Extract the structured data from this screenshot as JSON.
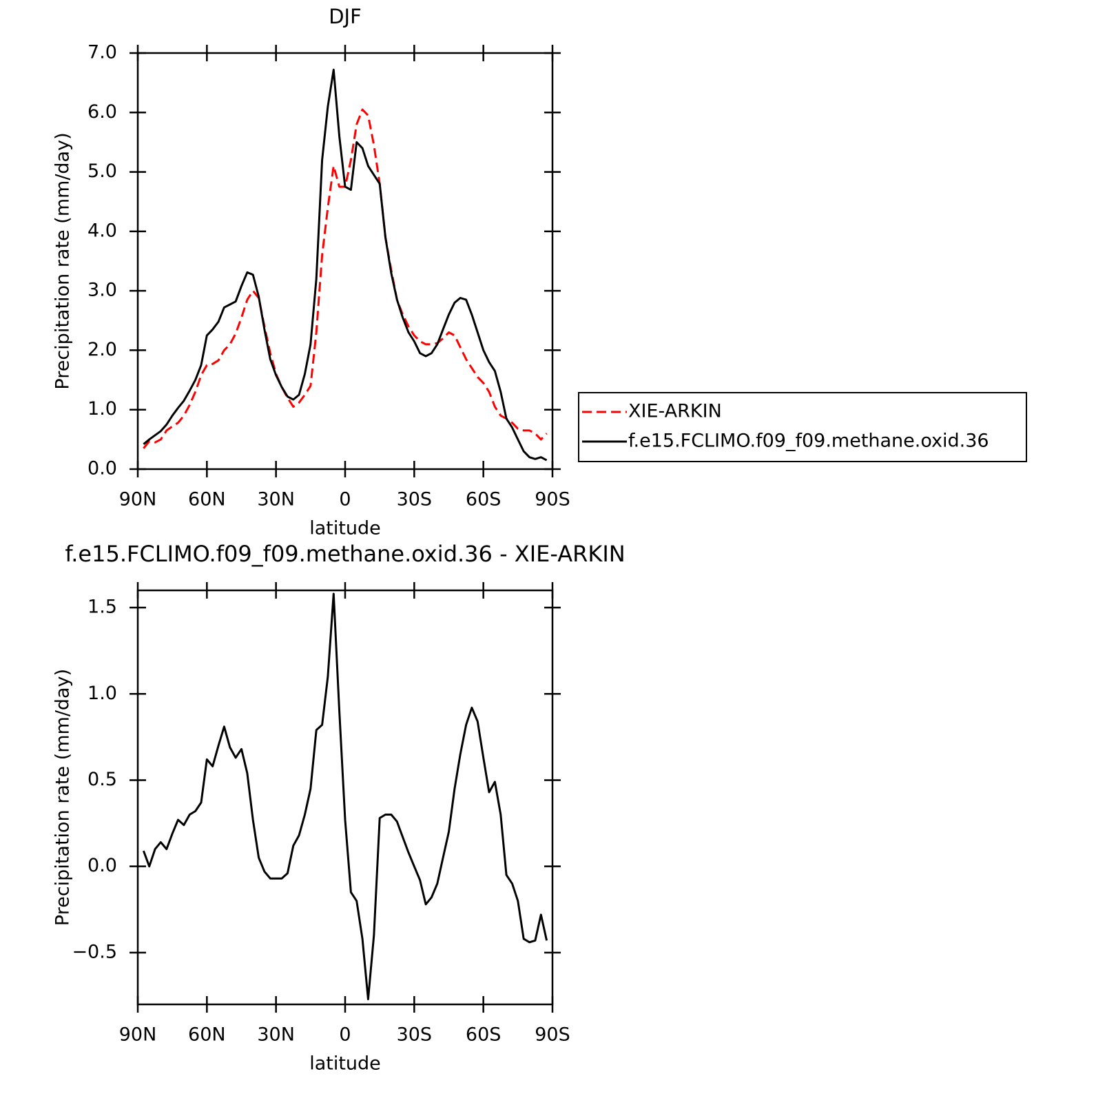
{
  "chart_data": [
    {
      "type": "line",
      "title": "DJF",
      "xlabel": "latitude",
      "ylabel": "Precipitation rate (mm/day)",
      "x": [
        87.5,
        85,
        82.5,
        80,
        77.5,
        75,
        72.5,
        70,
        67.5,
        65,
        62.5,
        60,
        57.5,
        55,
        52.5,
        50,
        47.5,
        45,
        42.5,
        40,
        37.5,
        35,
        32.5,
        30,
        27.5,
        25,
        22.5,
        20,
        17.5,
        15,
        12.5,
        10,
        7.5,
        5,
        2.5,
        0,
        -2.5,
        -5,
        -7.5,
        -10,
        -12.5,
        -15,
        -17.5,
        -20,
        -22.5,
        -25,
        -27.5,
        -30,
        -32.5,
        -35,
        -37.5,
        -40,
        -42.5,
        -45,
        -47.5,
        -50,
        -52.5,
        -55,
        -57.5,
        -60,
        -62.5,
        -65,
        -67.5,
        -70,
        -72.5,
        -75,
        -77.5,
        -80,
        -82.5,
        -85,
        -87.5
      ],
      "series": [
        {
          "name": "XIE-ARKIN",
          "color": "#ff0000",
          "line_style": "dashed",
          "values": [
            0.35,
            0.47,
            0.45,
            0.5,
            0.65,
            0.72,
            0.78,
            0.9,
            1.08,
            1.3,
            1.58,
            1.75,
            1.77,
            1.83,
            2.0,
            2.1,
            2.28,
            2.55,
            2.85,
            3.0,
            2.88,
            2.4,
            1.95,
            1.6,
            1.38,
            1.2,
            1.05,
            1.12,
            1.25,
            1.4,
            2.3,
            3.6,
            4.4,
            5.1,
            4.75,
            4.75,
            5.2,
            5.8,
            6.05,
            5.95,
            5.45,
            4.8,
            3.9,
            3.35,
            2.85,
            2.6,
            2.4,
            2.25,
            2.15,
            2.1,
            2.1,
            2.12,
            2.2,
            2.3,
            2.25,
            2.05,
            1.85,
            1.7,
            1.55,
            1.45,
            1.3,
            1.05,
            0.9,
            0.85,
            0.78,
            0.68,
            0.65,
            0.65,
            0.6,
            0.5,
            0.6
          ]
        },
        {
          "name": "f.e15.FCLIMO.f09_f09.methane.oxid.36",
          "color": "#000000",
          "line_style": "solid",
          "values": [
            0.42,
            0.5,
            0.57,
            0.64,
            0.75,
            0.9,
            1.03,
            1.15,
            1.32,
            1.5,
            1.75,
            2.25,
            2.35,
            2.48,
            2.72,
            2.77,
            2.82,
            3.08,
            3.31,
            3.27,
            2.9,
            2.35,
            1.85,
            1.58,
            1.38,
            1.22,
            1.17,
            1.25,
            1.6,
            2.1,
            3.2,
            5.2,
            6.1,
            6.72,
            5.6,
            4.75,
            4.7,
            5.5,
            5.4,
            5.1,
            4.95,
            4.8,
            3.9,
            3.3,
            2.85,
            2.55,
            2.3,
            2.15,
            1.95,
            1.9,
            1.95,
            2.1,
            2.35,
            2.6,
            2.8,
            2.88,
            2.85,
            2.6,
            2.3,
            2.0,
            1.8,
            1.65,
            1.3,
            0.85,
            0.7,
            0.5,
            0.3,
            0.2,
            0.17,
            0.2,
            0.15
          ]
        }
      ],
      "xlim": [
        90,
        -90
      ],
      "xticks": [
        {
          "value": 90,
          "label": "90N"
        },
        {
          "value": 60,
          "label": "60N"
        },
        {
          "value": 30,
          "label": "30N"
        },
        0,
        {
          "value": -30,
          "label": "30S"
        },
        {
          "value": -60,
          "label": "60S"
        },
        {
          "value": -90,
          "label": "90S"
        }
      ],
      "ylim": [
        0,
        7
      ],
      "yticks": [
        {
          "value": 0,
          "label": "0.0"
        },
        {
          "value": 1,
          "label": "1.0"
        },
        {
          "value": 2,
          "label": "2.0"
        },
        {
          "value": 3,
          "label": "3.0"
        },
        {
          "value": 4,
          "label": "4.0"
        },
        {
          "value": 5,
          "label": "5.0"
        },
        {
          "value": 6,
          "label": "6.0"
        },
        {
          "value": 7,
          "label": "7.0"
        }
      ],
      "legend": "right"
    },
    {
      "type": "line",
      "title": "f.e15.FCLIMO.f09_f09.methane.oxid.36 - XIE-ARKIN",
      "xlabel": "latitude",
      "ylabel": "Precipitation rate (mm/day)",
      "x": [
        87.5,
        85,
        82.5,
        80,
        77.5,
        75,
        72.5,
        70,
        67.5,
        65,
        62.5,
        60,
        57.5,
        55,
        52.5,
        50,
        47.5,
        45,
        42.5,
        40,
        37.5,
        35,
        32.5,
        30,
        27.5,
        25,
        22.5,
        20,
        17.5,
        15,
        12.5,
        10,
        7.5,
        5,
        2.5,
        0,
        -2.5,
        -5,
        -7.5,
        -10,
        -12.5,
        -15,
        -17.5,
        -20,
        -22.5,
        -25,
        -27.5,
        -30,
        -32.5,
        -35,
        -37.5,
        -40,
        -42.5,
        -45,
        -47.5,
        -50,
        -52.5,
        -55,
        -57.5,
        -60,
        -62.5,
        -65,
        -67.5,
        -70,
        -72.5,
        -75,
        -77.5,
        -80,
        -82.5,
        -85,
        -87.5
      ],
      "color": "#000000",
      "values": [
        0.09,
        0.0,
        0.1,
        0.14,
        0.1,
        0.19,
        0.27,
        0.24,
        0.3,
        0.32,
        0.37,
        0.62,
        0.58,
        0.7,
        0.81,
        0.69,
        0.63,
        0.68,
        0.54,
        0.27,
        0.05,
        -0.03,
        -0.07,
        -0.07,
        -0.07,
        -0.04,
        0.12,
        0.18,
        0.3,
        0.45,
        0.79,
        0.82,
        1.1,
        1.58,
        0.9,
        0.27,
        -0.15,
        -0.2,
        -0.42,
        -0.77,
        -0.4,
        0.28,
        0.3,
        0.3,
        0.26,
        0.17,
        0.08,
        0.0,
        -0.08,
        -0.22,
        -0.18,
        -0.1,
        0.05,
        0.2,
        0.45,
        0.65,
        0.82,
        0.92,
        0.84,
        0.63,
        0.43,
        0.49,
        0.3,
        -0.05,
        -0.1,
        -0.2,
        -0.42,
        -0.44,
        -0.43,
        -0.28,
        -0.43
      ],
      "xlim": [
        90,
        -90
      ],
      "xticks": [
        {
          "value": 90,
          "label": "90N"
        },
        {
          "value": 60,
          "label": "60N"
        },
        {
          "value": 30,
          "label": "30N"
        },
        0,
        {
          "value": -30,
          "label": "30S"
        },
        {
          "value": -60,
          "label": "60S"
        },
        {
          "value": -90,
          "label": "90S"
        }
      ],
      "ylim": [
        -0.8,
        1.6
      ],
      "yticks": [
        {
          "value": -0.5,
          "label": "−0.5"
        },
        {
          "value": 0,
          "label": "0.0"
        },
        0.5,
        {
          "value": 1,
          "label": "1.0"
        },
        1.5
      ]
    }
  ]
}
